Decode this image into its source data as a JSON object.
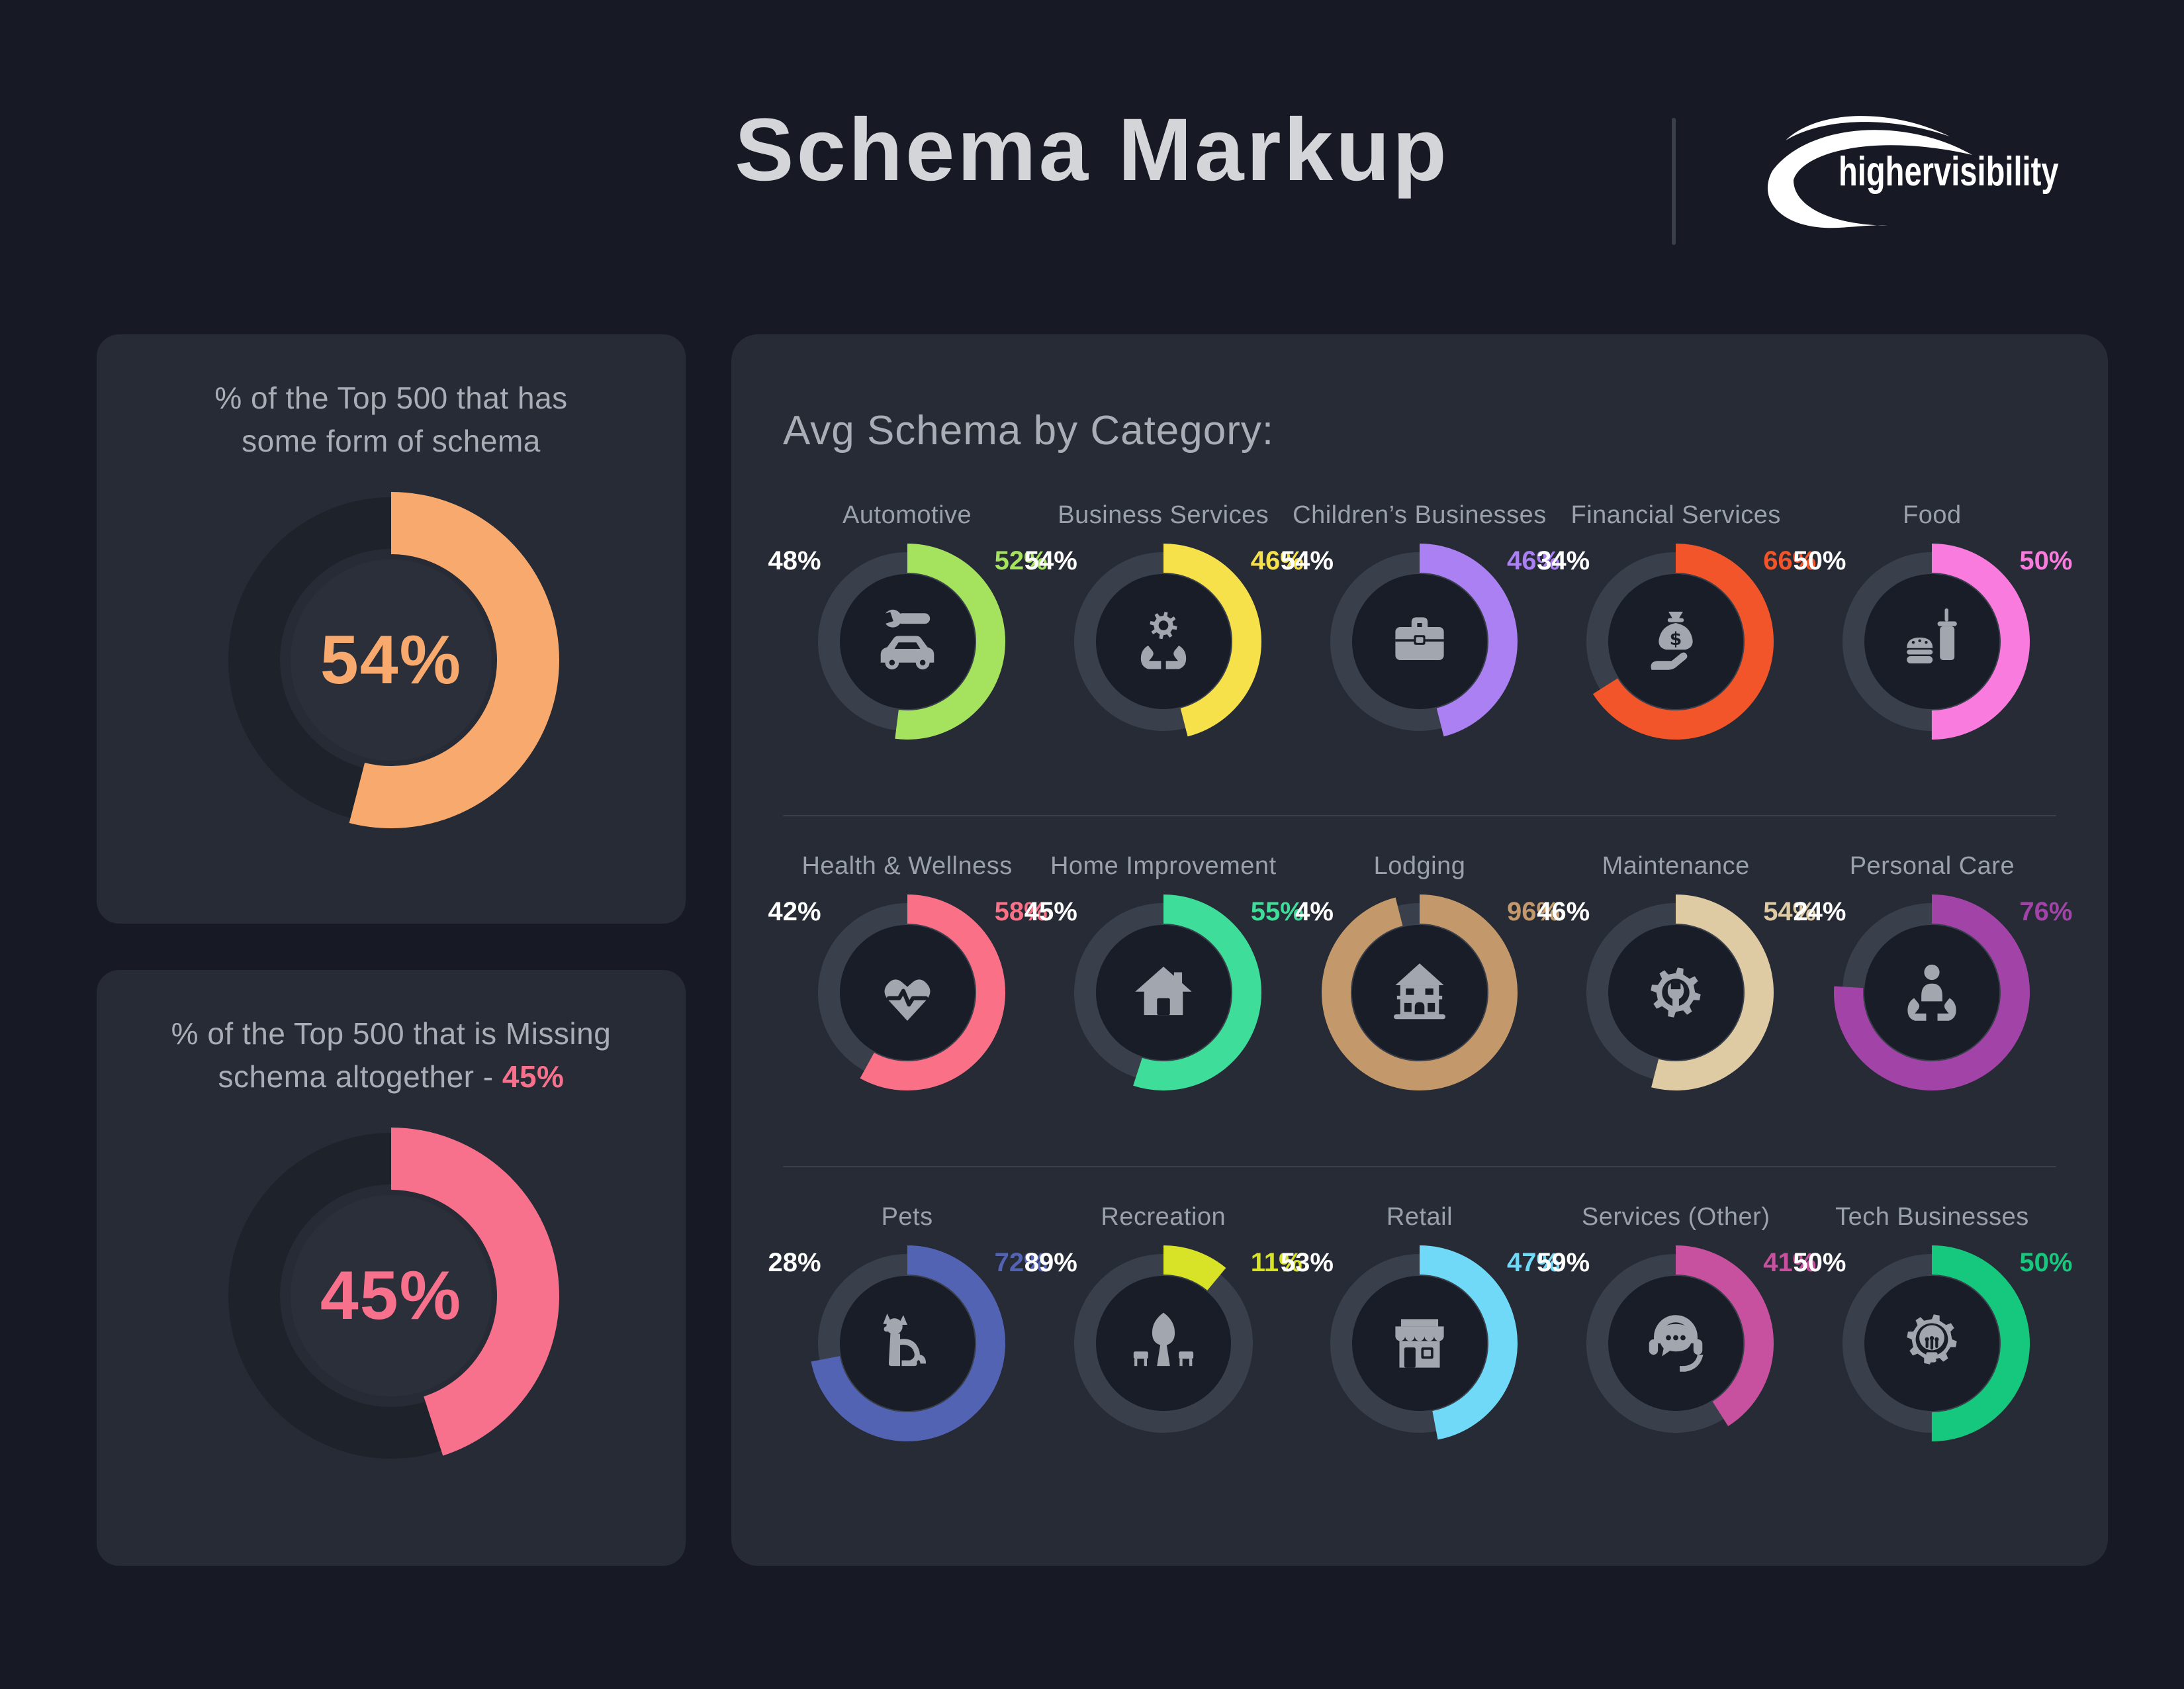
{
  "header": {
    "title": "Schema Markup",
    "brand": "highervisibility"
  },
  "cards": [
    {
      "title": "% of the Top 500 that has\nsome form of schema",
      "highlight": ""
    },
    {
      "title": "% of the Top 500 that is Missing\nschema altogether - ",
      "highlight": "45%"
    }
  ],
  "panel": {
    "heading": "Avg Schema by Category:"
  },
  "colors": {
    "page_bg": "#171A24",
    "card_bg": "#262B35",
    "small_track": "#3A404B",
    "small_disc": "#191D28",
    "big_track": "#1E222B",
    "big_disc": "#2A2F39",
    "icon_gray": "#A2A7AF",
    "heading_text": "#A9AEB6",
    "category_text": "#9BA1AA",
    "title_text": "#D3D5D9",
    "percent_left_text": "#FFFFFF"
  },
  "chart_data": [
    {
      "type": "donut",
      "title": "% of the Top 500 that has some form of schema",
      "value": 54,
      "center_label": "54%",
      "color": "#F8AA6E",
      "legend": "arc starts at 12 o'clock, clockwise"
    },
    {
      "type": "donut",
      "title": "% of the Top 500 that is Missing schema altogether",
      "value": 45,
      "center_label": "45%",
      "color": "#F8718C",
      "legend": "arc starts at 12 o'clock, clockwise"
    },
    {
      "type": "donut-grid",
      "title": "Avg Schema by Category:",
      "rows": 3,
      "cols": 5,
      "note": "left white value + right colored value = 100%; colored arc = right value",
      "categories": [
        {
          "label": "Automotive",
          "left": "48%",
          "right": "52%",
          "value": 52,
          "color": "#A5E35F",
          "icon": "car-wrench-icon"
        },
        {
          "label": "Business Services",
          "left": "54%",
          "right": "46%",
          "value": 46,
          "color": "#F7E14B",
          "icon": "hands-gear-icon"
        },
        {
          "label": "Children’s Businesses",
          "left": "54%",
          "right": "46%",
          "value": 46,
          "color": "#AA80F2",
          "icon": "briefcase-icon"
        },
        {
          "label": "Financial Services",
          "left": "34%",
          "right": "66%",
          "value": 66,
          "color": "#F3552A",
          "icon": "money-bag-hand-icon"
        },
        {
          "label": "Food",
          "left": "50%",
          "right": "50%",
          "value": 50,
          "color": "#FA7BDE",
          "icon": "burger-drink-icon"
        },
        {
          "label": "Health & Wellness",
          "left": "42%",
          "right": "58%",
          "value": 58,
          "color": "#F97087",
          "icon": "heart-pulse-icon"
        },
        {
          "label": "Home Improvement",
          "left": "45%",
          "right": "55%",
          "value": 55,
          "color": "#3FDD9A",
          "icon": "house-icon"
        },
        {
          "label": "Lodging",
          "left": "4%",
          "right": "96%",
          "value": 96,
          "color": "#C3996B",
          "icon": "inn-icon"
        },
        {
          "label": "Maintenance",
          "left": "46%",
          "right": "54%",
          "value": 54,
          "color": "#DECBA4",
          "icon": "gear-wrench-icon"
        },
        {
          "label": "Personal Care",
          "left": "24%",
          "right": "76%",
          "value": 76,
          "color": "#A243A8",
          "icon": "person-hands-icon"
        },
        {
          "label": "Pets",
          "left": "28%",
          "right": "72%",
          "value": 72,
          "color": "#5363B3",
          "icon": "dog-icon"
        },
        {
          "label": "Recreation",
          "left": "89%",
          "right": "11%",
          "value": 11,
          "color": "#D8E226",
          "icon": "park-icon"
        },
        {
          "label": "Retail",
          "left": "53%",
          "right": "47%",
          "value": 47,
          "color": "#70D9F7",
          "icon": "storefront-icon"
        },
        {
          "label": "Services (Other)",
          "left": "59%",
          "right": "41%",
          "value": 41,
          "color": "#C8519F",
          "icon": "headset-chat-icon"
        },
        {
          "label": "Tech Businesses",
          "left": "50%",
          "right": "50%",
          "value": 50,
          "color": "#16C87D",
          "icon": "bulb-gear-icon"
        }
      ]
    }
  ]
}
